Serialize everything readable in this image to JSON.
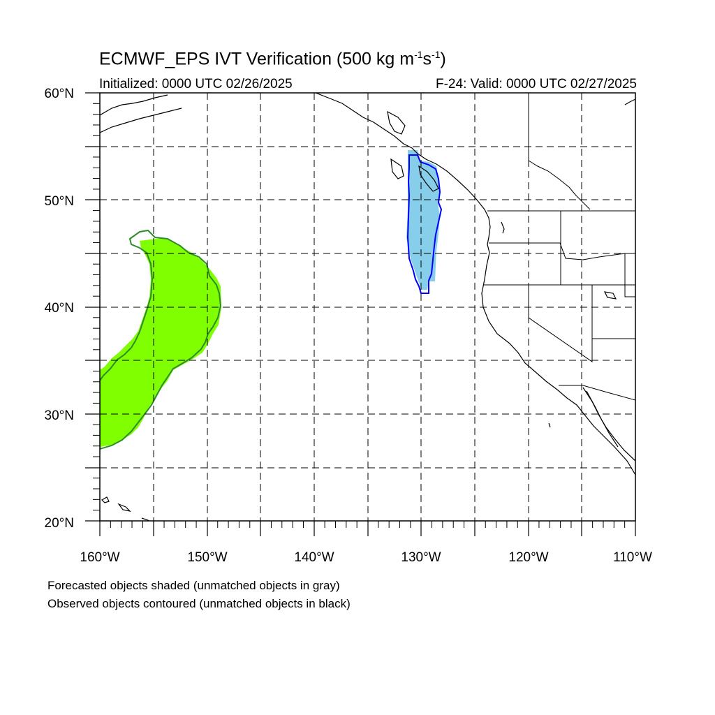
{
  "title": {
    "text": "ECMWF_EPS IVT Verification (500 kg m",
    "sup1": "-1",
    "mid": "s",
    "sup2": "-1",
    "tail": ")"
  },
  "subtitle_left": "Initialized: 0000 UTC 02/26/2025",
  "subtitle_right": "F-24: Valid: 0000 UTC 02/27/2025",
  "lat_labels": [
    "60°N",
    "50°N",
    "40°N",
    "30°N",
    "20°N"
  ],
  "lon_labels": [
    "160°W",
    "150°W",
    "140°W",
    "130°W",
    "120°W",
    "110°W"
  ],
  "notes": [
    "Forecasted objects shaded (unmatched objects in gray)",
    "Observed objects contoured (unmatched objects in black)"
  ],
  "colors": {
    "object1_fill": "#7fff00",
    "object1_contour": "#2e8b2e",
    "object2_fill": "#87ceeb",
    "object2_contour": "#0000ff",
    "coast": "#000000",
    "grid": "#000000"
  },
  "map_extent": {
    "lon_min": -160,
    "lon_max": -110,
    "lat_min": 20,
    "lat_max": 60
  }
}
